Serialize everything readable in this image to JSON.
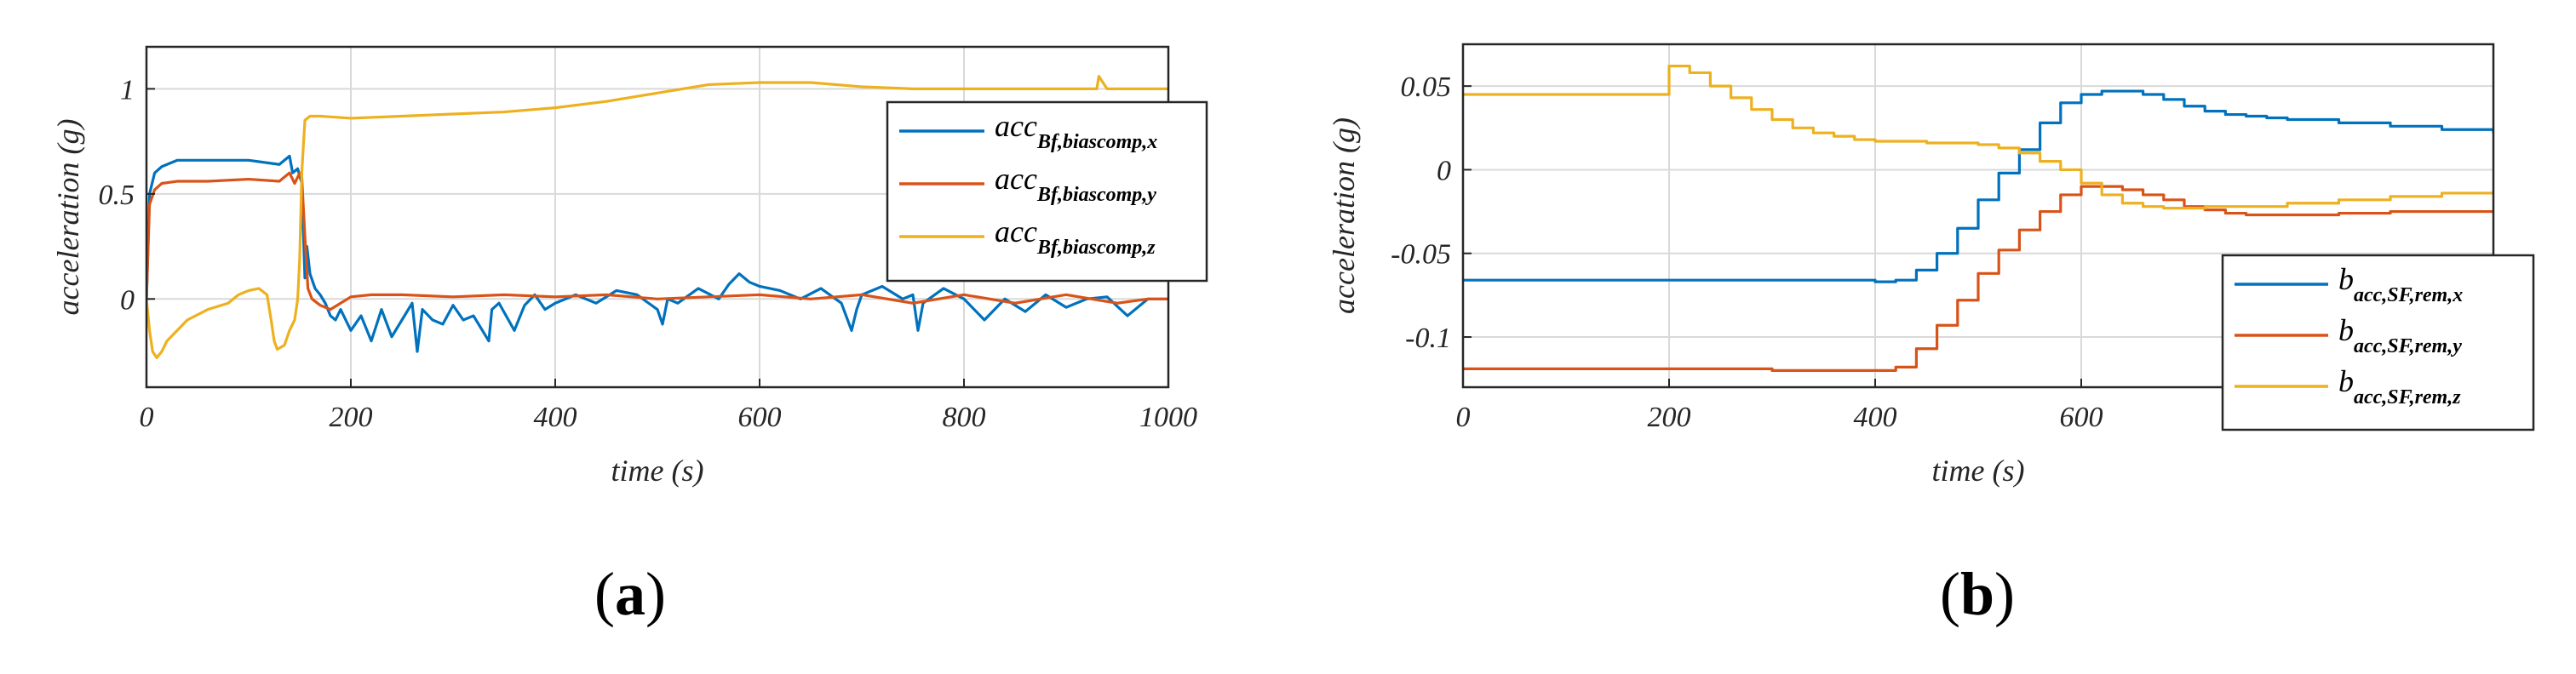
{
  "chart_data": [
    {
      "type": "line",
      "panel_label": "a",
      "title": "",
      "xlabel": "time (s)",
      "ylabel": "acceleration (g)",
      "xlim": [
        0,
        1000
      ],
      "ylim": [
        -0.42,
        1.2
      ],
      "xticks": [
        0,
        200,
        400,
        600,
        800,
        1000
      ],
      "yticks": [
        0,
        0.5,
        1
      ],
      "xtick_labels": [
        "0",
        "200",
        "400",
        "600",
        "800",
        "1000"
      ],
      "ytick_labels": [
        "0",
        "0.5",
        "1"
      ],
      "grid": true,
      "legend_position": "top-right",
      "series": [
        {
          "name": "acc_Bf,biascomp,x",
          "base": "acc",
          "sub": "Bf,biascomp,x",
          "color": "#0072BD",
          "x": [
            0,
            3,
            8,
            15,
            30,
            60,
            100,
            130,
            140,
            143,
            148,
            152,
            155,
            157,
            160,
            165,
            170,
            175,
            180,
            185,
            190,
            200,
            210,
            220,
            230,
            240,
            250,
            260,
            265,
            270,
            280,
            290,
            300,
            310,
            320,
            335,
            338,
            345,
            360,
            370,
            380,
            390,
            400,
            420,
            440,
            460,
            480,
            500,
            505,
            510,
            520,
            540,
            560,
            570,
            580,
            590,
            600,
            620,
            640,
            660,
            680,
            690,
            695,
            700,
            720,
            740,
            750,
            755,
            760,
            780,
            800,
            810,
            820,
            840,
            860,
            880,
            900,
            920,
            940,
            960,
            980,
            1000
          ],
          "y": [
            0,
            0.5,
            0.6,
            0.63,
            0.66,
            0.66,
            0.66,
            0.64,
            0.68,
            0.6,
            0.62,
            0.55,
            0.1,
            0.25,
            0.12,
            0.05,
            0.02,
            -0.02,
            -0.08,
            -0.1,
            -0.05,
            -0.15,
            -0.08,
            -0.2,
            -0.05,
            -0.18,
            -0.1,
            -0.02,
            -0.25,
            -0.05,
            -0.1,
            -0.12,
            -0.03,
            -0.1,
            -0.08,
            -0.2,
            -0.05,
            -0.02,
            -0.15,
            -0.03,
            0.02,
            -0.05,
            -0.02,
            0.02,
            -0.02,
            0.04,
            0.02,
            -0.05,
            -0.12,
            0.0,
            -0.02,
            0.05,
            0.0,
            0.07,
            0.12,
            0.08,
            0.06,
            0.04,
            0.0,
            0.05,
            -0.02,
            -0.15,
            -0.05,
            0.02,
            0.06,
            0.0,
            0.02,
            -0.15,
            -0.02,
            0.05,
            0.0,
            -0.05,
            -0.1,
            0.0,
            -0.06,
            0.02,
            -0.04,
            0.0,
            0.01,
            -0.08,
            0.0,
            0.0
          ]
        },
        {
          "name": "acc_Bf,biascomp,y",
          "base": "acc",
          "sub": "Bf,biascomp,y",
          "color": "#D95319",
          "x": [
            0,
            3,
            8,
            15,
            30,
            60,
            100,
            130,
            140,
            145,
            150,
            152,
            155,
            158,
            162,
            170,
            180,
            190,
            200,
            220,
            250,
            300,
            350,
            400,
            450,
            500,
            550,
            600,
            650,
            700,
            750,
            800,
            850,
            900,
            950,
            980,
            1000
          ],
          "y": [
            0,
            0.45,
            0.52,
            0.55,
            0.56,
            0.56,
            0.57,
            0.56,
            0.6,
            0.55,
            0.6,
            0.58,
            0.3,
            0.05,
            0.0,
            -0.03,
            -0.05,
            -0.02,
            0.01,
            0.02,
            0.02,
            0.01,
            0.02,
            0.01,
            0.02,
            0.0,
            0.01,
            0.02,
            0.0,
            0.02,
            -0.02,
            0.02,
            -0.02,
            0.02,
            -0.02,
            0.0,
            0.0
          ]
        },
        {
          "name": "acc_Bf,biascomp,z",
          "base": "acc",
          "sub": "Bf,biascomp,z",
          "color": "#EDB120",
          "x": [
            0,
            3,
            6,
            10,
            15,
            20,
            30,
            40,
            60,
            80,
            90,
            100,
            110,
            118,
            122,
            125,
            128,
            135,
            140,
            145,
            148,
            150,
            152,
            155,
            160,
            170,
            200,
            250,
            300,
            350,
            400,
            450,
            500,
            550,
            600,
            650,
            700,
            750,
            800,
            850,
            900,
            930,
            932,
            940,
            1000
          ],
          "y": [
            0,
            -0.15,
            -0.25,
            -0.28,
            -0.25,
            -0.2,
            -0.15,
            -0.1,
            -0.05,
            -0.02,
            0.02,
            0.04,
            0.05,
            0.02,
            -0.1,
            -0.2,
            -0.24,
            -0.22,
            -0.15,
            -0.1,
            0.0,
            0.2,
            0.6,
            0.85,
            0.87,
            0.87,
            0.86,
            0.87,
            0.88,
            0.89,
            0.91,
            0.94,
            0.98,
            1.02,
            1.03,
            1.03,
            1.01,
            1.0,
            1.0,
            1.0,
            1.0,
            1.0,
            1.06,
            1.0,
            1.0
          ]
        }
      ]
    },
    {
      "type": "line",
      "panel_label": "b",
      "title": "",
      "xlabel": "time (s)",
      "ylabel": "acceleration (g)",
      "xlim": [
        0,
        1000
      ],
      "ylim": [
        -0.13,
        0.075
      ],
      "xticks": [
        0,
        200,
        400,
        600
      ],
      "yticks": [
        -0.1,
        -0.05,
        0,
        0.05
      ],
      "xtick_labels": [
        "0",
        "200",
        "400",
        "600"
      ],
      "ytick_labels": [
        "-0.1",
        "-0.05",
        "0",
        "0.05"
      ],
      "grid": true,
      "legend_position": "bottom-right",
      "series": [
        {
          "name": "b_acc,SF,rem,x",
          "base": "b",
          "sub": "acc,SF,rem,x",
          "color": "#0072BD",
          "x": [
            0,
            300,
            400,
            420,
            440,
            460,
            480,
            500,
            520,
            540,
            560,
            580,
            600,
            620,
            640,
            660,
            680,
            700,
            720,
            740,
            760,
            780,
            800,
            850,
            900,
            950,
            1000
          ],
          "y": [
            -0.066,
            -0.066,
            -0.067,
            -0.066,
            -0.06,
            -0.05,
            -0.035,
            -0.018,
            -0.002,
            0.012,
            0.028,
            0.04,
            0.045,
            0.047,
            0.047,
            0.045,
            0.042,
            0.038,
            0.035,
            0.033,
            0.032,
            0.031,
            0.03,
            0.028,
            0.026,
            0.024,
            0.022
          ]
        },
        {
          "name": "b_acc,SF,rem,y",
          "base": "b",
          "sub": "acc,SF,rem,y",
          "color": "#D95319",
          "x": [
            0,
            300,
            400,
            420,
            440,
            460,
            480,
            500,
            520,
            540,
            560,
            580,
            600,
            620,
            640,
            660,
            680,
            700,
            720,
            740,
            760,
            800,
            850,
            900,
            950,
            1000
          ],
          "y": [
            -0.119,
            -0.12,
            -0.12,
            -0.118,
            -0.107,
            -0.093,
            -0.078,
            -0.062,
            -0.048,
            -0.036,
            -0.025,
            -0.015,
            -0.01,
            -0.01,
            -0.012,
            -0.015,
            -0.018,
            -0.022,
            -0.024,
            -0.026,
            -0.027,
            -0.027,
            -0.026,
            -0.025,
            -0.025,
            -0.025
          ]
        },
        {
          "name": "b_acc,SF,rem,z",
          "base": "b",
          "sub": "acc,SF,rem,z",
          "color": "#EDB120",
          "x": [
            0,
            100,
            180,
            200,
            220,
            240,
            260,
            280,
            300,
            320,
            340,
            360,
            380,
            400,
            450,
            500,
            520,
            540,
            560,
            580,
            600,
            620,
            640,
            660,
            680,
            700,
            720,
            750,
            800,
            850,
            900,
            950,
            1000
          ],
          "y": [
            0.045,
            0.045,
            0.045,
            0.062,
            0.058,
            0.05,
            0.043,
            0.036,
            0.03,
            0.025,
            0.022,
            0.02,
            0.018,
            0.017,
            0.016,
            0.015,
            0.013,
            0.01,
            0.005,
            0.0,
            -0.008,
            -0.015,
            -0.02,
            -0.022,
            -0.023,
            -0.023,
            -0.022,
            -0.022,
            -0.02,
            -0.018,
            -0.016,
            -0.014,
            -0.013
          ]
        }
      ]
    }
  ]
}
